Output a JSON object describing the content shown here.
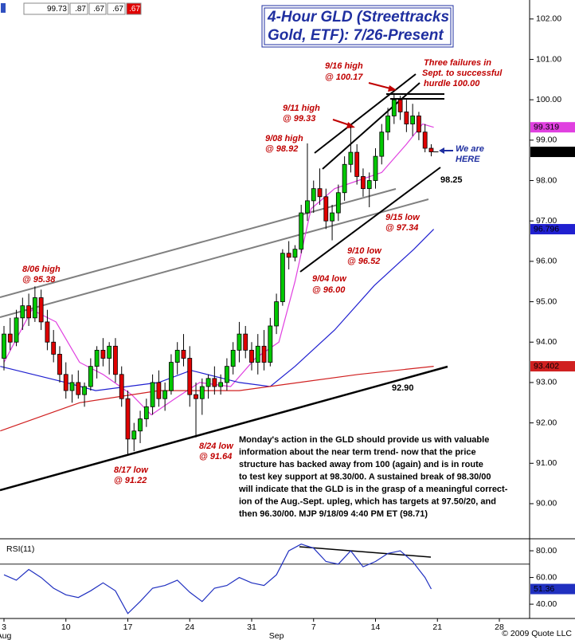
{
  "quote_box": [
    "99.73",
    ".87",
    ".67",
    ".67",
    ".67"
  ],
  "footer": "© 2009 Quote LLC",
  "commentary": [
    "Monday's action in the GLD should provide us with valuable",
    "information about the near term trend- now that the price",
    "structure has backed away from 100 (again) and is in route",
    "to test key support at 98.30/00. A sustained break of 98.30/00",
    "will indicate that the GLD is in the grasp of a meaningful correct-",
    "ion of the Aug.-Sept. upleg, which has targets at 97.50/20, and",
    "then 96.30/00. MJP  9/18/09  4:40 PM ET  (98.71)"
  ],
  "annotations": [
    [
      "8/06 high",
      "@ 95.38"
    ],
    [
      "8/17 low",
      "@ 91.22"
    ],
    [
      "8/24 low",
      "@ 91.64"
    ],
    [
      "9/04 low",
      "@ 96.00"
    ],
    [
      "9/08 high",
      "@ 98.92"
    ],
    [
      "9/11 high",
      "@ 99.33"
    ],
    [
      "9/10 low",
      "@ 96.52"
    ],
    [
      "9/15 low",
      "@ 97.34"
    ],
    [
      "9/16 high",
      "@ 100.17"
    ],
    [
      "Three failures in",
      "Sept. to successful",
      "hurdle 100.00"
    ],
    [
      "We are",
      "HERE"
    ],
    [
      "98.25"
    ],
    [
      "92.90"
    ]
  ],
  "chart_data": [
    {
      "type": "candlestick",
      "title": [
        "4-Hour GLD (Streettracks",
        "Gold, ETF): 7/26-Present"
      ],
      "x": [
        0,
        0.5,
        1,
        1.5,
        2,
        2.5,
        3,
        3.5,
        4,
        4.5,
        5,
        5.5,
        6,
        6.5,
        7,
        7.5,
        8,
        8.5,
        9,
        9.5,
        10,
        10.5,
        11,
        11.5,
        12,
        12.5,
        13,
        13.5,
        14,
        14.5,
        15,
        15.5,
        16,
        16.5,
        17,
        17.5,
        18,
        18.5,
        19,
        19.5,
        20,
        20.5,
        21,
        21.5,
        22,
        22.5,
        23,
        23.5,
        24,
        24.5,
        25,
        25.5,
        26,
        26.5,
        27,
        27.5,
        28,
        28.5,
        29,
        29.5,
        30,
        30.5,
        31,
        31.5,
        32,
        32.5,
        33,
        33.5,
        34,
        34.5
      ],
      "open": [
        93.6,
        94.2,
        94.0,
        94.6,
        94.9,
        94.6,
        95.1,
        94.5,
        94.0,
        93.7,
        93.2,
        92.8,
        93.0,
        92.7,
        92.9,
        93.4,
        93.8,
        93.6,
        93.9,
        93.2,
        92.6,
        91.6,
        91.8,
        92.1,
        92.4,
        93.0,
        92.6,
        92.8,
        93.5,
        93.8,
        93.6,
        92.7,
        92.6,
        92.9,
        93.1,
        92.9,
        93.0,
        93.4,
        93.8,
        94.2,
        93.8,
        93.5,
        93.9,
        93.5,
        94.4,
        95.0,
        96.2,
        96.1,
        96.3,
        97.2,
        97.5,
        97.8,
        97.6,
        97.0,
        97.2,
        97.7,
        98.4,
        98.7,
        98.1,
        97.8,
        98.0,
        98.6,
        99.2,
        99.6,
        100.0,
        99.7,
        99.4,
        99.6,
        99.2,
        98.8
      ],
      "high": [
        94.4,
        94.6,
        94.8,
        95.1,
        95.2,
        95.38,
        95.3,
        94.8,
        94.3,
        93.9,
        93.5,
        93.2,
        93.3,
        93.0,
        93.6,
        93.9,
        94.1,
        94.0,
        94.1,
        93.4,
        92.8,
        92.0,
        92.3,
        92.6,
        93.2,
        93.3,
        93.0,
        93.7,
        94.0,
        94.2,
        93.9,
        93.0,
        93.1,
        93.2,
        93.4,
        93.2,
        93.6,
        94.0,
        94.5,
        94.4,
        94.0,
        94.2,
        94.3,
        94.6,
        95.2,
        96.3,
        96.5,
        96.4,
        97.4,
        98.92,
        98.0,
        98.3,
        97.8,
        97.4,
        97.9,
        98.6,
        99.33,
        98.9,
        98.3,
        98.2,
        98.8,
        99.4,
        99.8,
        100.17,
        100.1,
        100.0,
        99.9,
        99.7,
        99.4,
        98.9
      ],
      "low": [
        93.3,
        93.8,
        93.9,
        94.3,
        94.4,
        94.5,
        94.3,
        93.8,
        93.5,
        93.0,
        92.6,
        92.5,
        92.6,
        92.4,
        92.8,
        93.1,
        93.4,
        93.2,
        93.0,
        92.4,
        91.22,
        91.3,
        91.5,
        91.9,
        92.2,
        92.4,
        92.3,
        92.7,
        93.2,
        93.4,
        92.4,
        91.64,
        92.2,
        92.6,
        92.7,
        92.7,
        92.8,
        93.2,
        93.5,
        93.6,
        93.3,
        93.2,
        93.3,
        93.4,
        94.2,
        94.9,
        95.8,
        96.0,
        96.2,
        97.0,
        97.2,
        97.4,
        96.8,
        96.52,
        97.0,
        97.5,
        98.2,
        97.9,
        97.6,
        97.34,
        97.8,
        98.4,
        99.0,
        99.4,
        99.5,
        99.2,
        99.1,
        99.0,
        98.7,
        98.6
      ],
      "close": [
        94.2,
        94.0,
        94.6,
        94.9,
        94.6,
        95.1,
        94.5,
        94.0,
        93.7,
        93.2,
        92.8,
        93.0,
        92.7,
        92.9,
        93.4,
        93.8,
        93.6,
        93.9,
        93.2,
        92.6,
        91.6,
        91.8,
        92.1,
        92.4,
        93.0,
        92.6,
        92.8,
        93.5,
        93.8,
        93.6,
        92.7,
        92.6,
        92.9,
        93.1,
        92.9,
        93.0,
        93.4,
        93.8,
        94.2,
        93.8,
        93.5,
        93.9,
        93.5,
        94.4,
        95.0,
        96.2,
        96.1,
        96.3,
        97.2,
        97.5,
        97.8,
        97.6,
        97.0,
        97.2,
        97.7,
        98.4,
        98.7,
        98.1,
        97.8,
        98.0,
        98.6,
        99.2,
        99.6,
        100.0,
        99.7,
        99.4,
        99.6,
        99.2,
        98.8,
        98.71
      ],
      "up_color": "#00c800",
      "down_color": "#e00000",
      "series": [
        {
          "color": "#e040e0",
          "x": [
            0,
            2.25,
            4.2,
            6.1,
            8,
            10.3,
            11.9,
            13.8,
            15.8,
            18.3,
            20.3,
            22.2,
            23.5,
            24.8,
            26.7,
            28.6,
            30.5,
            32.5,
            33.8,
            34.7
          ],
          "values": [
            93.5,
            94.8,
            94.5,
            93.5,
            93.2,
            92.7,
            92.2,
            92.6,
            93.0,
            92.9,
            93.6,
            94.0,
            95.5,
            97.3,
            97.8,
            98.0,
            98.2,
            98.9,
            99.4,
            99.319
          ]
        },
        {
          "color": "#2020d0",
          "x": [
            -0.3,
            5,
            7.4,
            12.5,
            15.1,
            19,
            21.5,
            23.5,
            26.7,
            29.9,
            33.1,
            34.7
          ],
          "values": [
            93.4,
            93.0,
            92.8,
            93.0,
            93.3,
            93.0,
            92.9,
            93.4,
            94.3,
            95.4,
            96.3,
            96.796
          ]
        },
        {
          "color": "#d02020",
          "x": [
            -0.3,
            6.1,
            12.5,
            19,
            28.6,
            34.7
          ],
          "values": [
            91.8,
            92.5,
            92.8,
            92.8,
            93.2,
            93.402
          ]
        }
      ],
      "xlim": [
        -0.3215,
        42.444
      ],
      "xticks": [
        {
          "value": 0,
          "label": "3"
        },
        {
          "value": 5,
          "label": "10"
        },
        {
          "value": 10,
          "label": "17"
        },
        {
          "value": 15,
          "label": "24"
        },
        {
          "value": 20,
          "label": "31"
        },
        {
          "value": 25,
          "label": "7"
        },
        {
          "value": 30,
          "label": "14"
        },
        {
          "value": 35,
          "label": "21"
        },
        {
          "value": 40,
          "label": "28"
        }
      ],
      "month_ticks": [
        {
          "value": 0,
          "label": "Aug"
        },
        {
          "value": 22,
          "label": "Sep"
        }
      ],
      "ylim": [
        89.21,
        102.47
      ],
      "yticks": [
        {
          "value": 90,
          "label": "90.00"
        },
        {
          "value": 91,
          "label": "91.00"
        },
        {
          "value": 92,
          "label": "92.00"
        },
        {
          "value": 93,
          "label": "93.00"
        },
        {
          "value": 94,
          "label": "94.00"
        },
        {
          "value": 95,
          "label": "95.00"
        },
        {
          "value": 96,
          "label": "96.00"
        },
        {
          "value": 97,
          "label": "97.00"
        },
        {
          "value": 98,
          "label": "98.00"
        },
        {
          "value": 99,
          "label": "99.00"
        },
        {
          "value": 100,
          "label": "100.00"
        },
        {
          "value": 101,
          "label": "101.00"
        },
        {
          "value": 102,
          "label": "102.00"
        }
      ]
    },
    {
      "type": "line",
      "title": "RSI(11)",
      "series": [
        {
          "color": "#2030c0",
          "x": [
            0,
            1,
            2,
            3,
            4,
            5,
            6,
            7,
            8,
            9,
            10,
            11,
            12,
            13,
            14,
            15,
            16,
            17,
            18,
            19,
            20,
            21,
            22,
            23,
            24,
            25,
            26,
            27,
            28,
            29,
            30,
            31,
            32,
            33,
            34,
            34.5
          ],
          "values": [
            62,
            58,
            66,
            60,
            52,
            47,
            45,
            50,
            56,
            50,
            33,
            42,
            52,
            54,
            58,
            49,
            42,
            52,
            54,
            60,
            56,
            54,
            62,
            80,
            85,
            82,
            72,
            70,
            80,
            68,
            72,
            78,
            80,
            72,
            60,
            51.36
          ]
        }
      ],
      "levels": [
        70
      ],
      "xlim": [
        -0.3215,
        42.444
      ],
      "ylim": [
        29.9,
        86.6
      ],
      "yticks": [
        {
          "value": 40,
          "label": "40.00"
        },
        {
          "value": 60,
          "label": "60.00"
        },
        {
          "value": 80,
          "label": "80.00"
        }
      ]
    }
  ]
}
